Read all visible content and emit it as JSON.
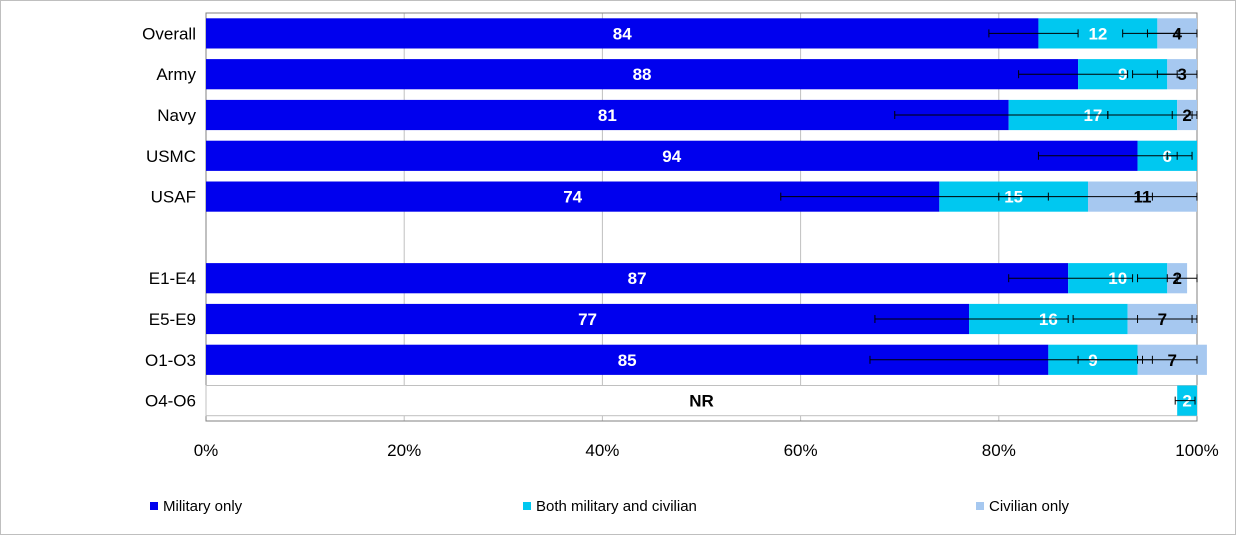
{
  "chart_data": {
    "type": "bar",
    "orientation": "horizontal",
    "stacked": true,
    "percent_axis": true,
    "categories": [
      "Overall",
      "Army",
      "Navy",
      "USMC",
      "USAF",
      "",
      "E1-E4",
      "E5-E9",
      "O1-O3",
      "O4-O6"
    ],
    "xlim": [
      0,
      100
    ],
    "xticks": [
      "0%",
      "20%",
      "40%",
      "60%",
      "80%",
      "100%"
    ],
    "grid": true,
    "legend_position": "bottom",
    "series": [
      {
        "name": "Military only",
        "color": "#0000EE",
        "values": [
          84,
          88,
          81,
          94,
          74,
          null,
          87,
          77,
          85,
          null
        ],
        "labels": [
          "84",
          "88",
          "81",
          "94",
          "74",
          "",
          "87",
          "77",
          "85",
          ""
        ],
        "error_low": [
          79,
          82,
          69.5,
          84,
          58,
          null,
          81,
          67.5,
          67,
          null
        ],
        "error_high": [
          88,
          93,
          91,
          98,
          85,
          null,
          93.5,
          87,
          94.5,
          null
        ]
      },
      {
        "name": "Both military and civilian",
        "color": "#00C8F0",
        "values": [
          12,
          9,
          17,
          6,
          15,
          null,
          10,
          16,
          9,
          2
        ],
        "labels": [
          "12",
          "9",
          "17",
          "6",
          "15",
          "",
          "10",
          "16",
          "9",
          "2"
        ],
        "error_low": [
          92.5,
          93.5,
          91,
          97,
          80,
          null,
          94,
          87.5,
          88,
          97.8
        ],
        "error_high": [
          98,
          98,
          99.5,
          99.5,
          95.5,
          null,
          98,
          99.5,
          95.5,
          99.8
        ]
      },
      {
        "name": "Civilian only",
        "color": "#A6C8F0",
        "values": [
          4,
          3,
          2,
          null,
          11,
          null,
          2,
          7,
          7,
          null
        ],
        "labels": [
          "4",
          "3",
          "2",
          "",
          "11",
          "",
          "2",
          "7",
          "7",
          ""
        ],
        "error_low": [
          95,
          96,
          97.5,
          null,
          94,
          null,
          97,
          94,
          94,
          null
        ],
        "error_high": [
          100,
          100,
          100,
          null,
          100,
          null,
          100,
          100,
          100,
          null
        ]
      }
    ],
    "not_reported": {
      "category": "O4-O6",
      "label": "NR",
      "at": 50
    }
  }
}
